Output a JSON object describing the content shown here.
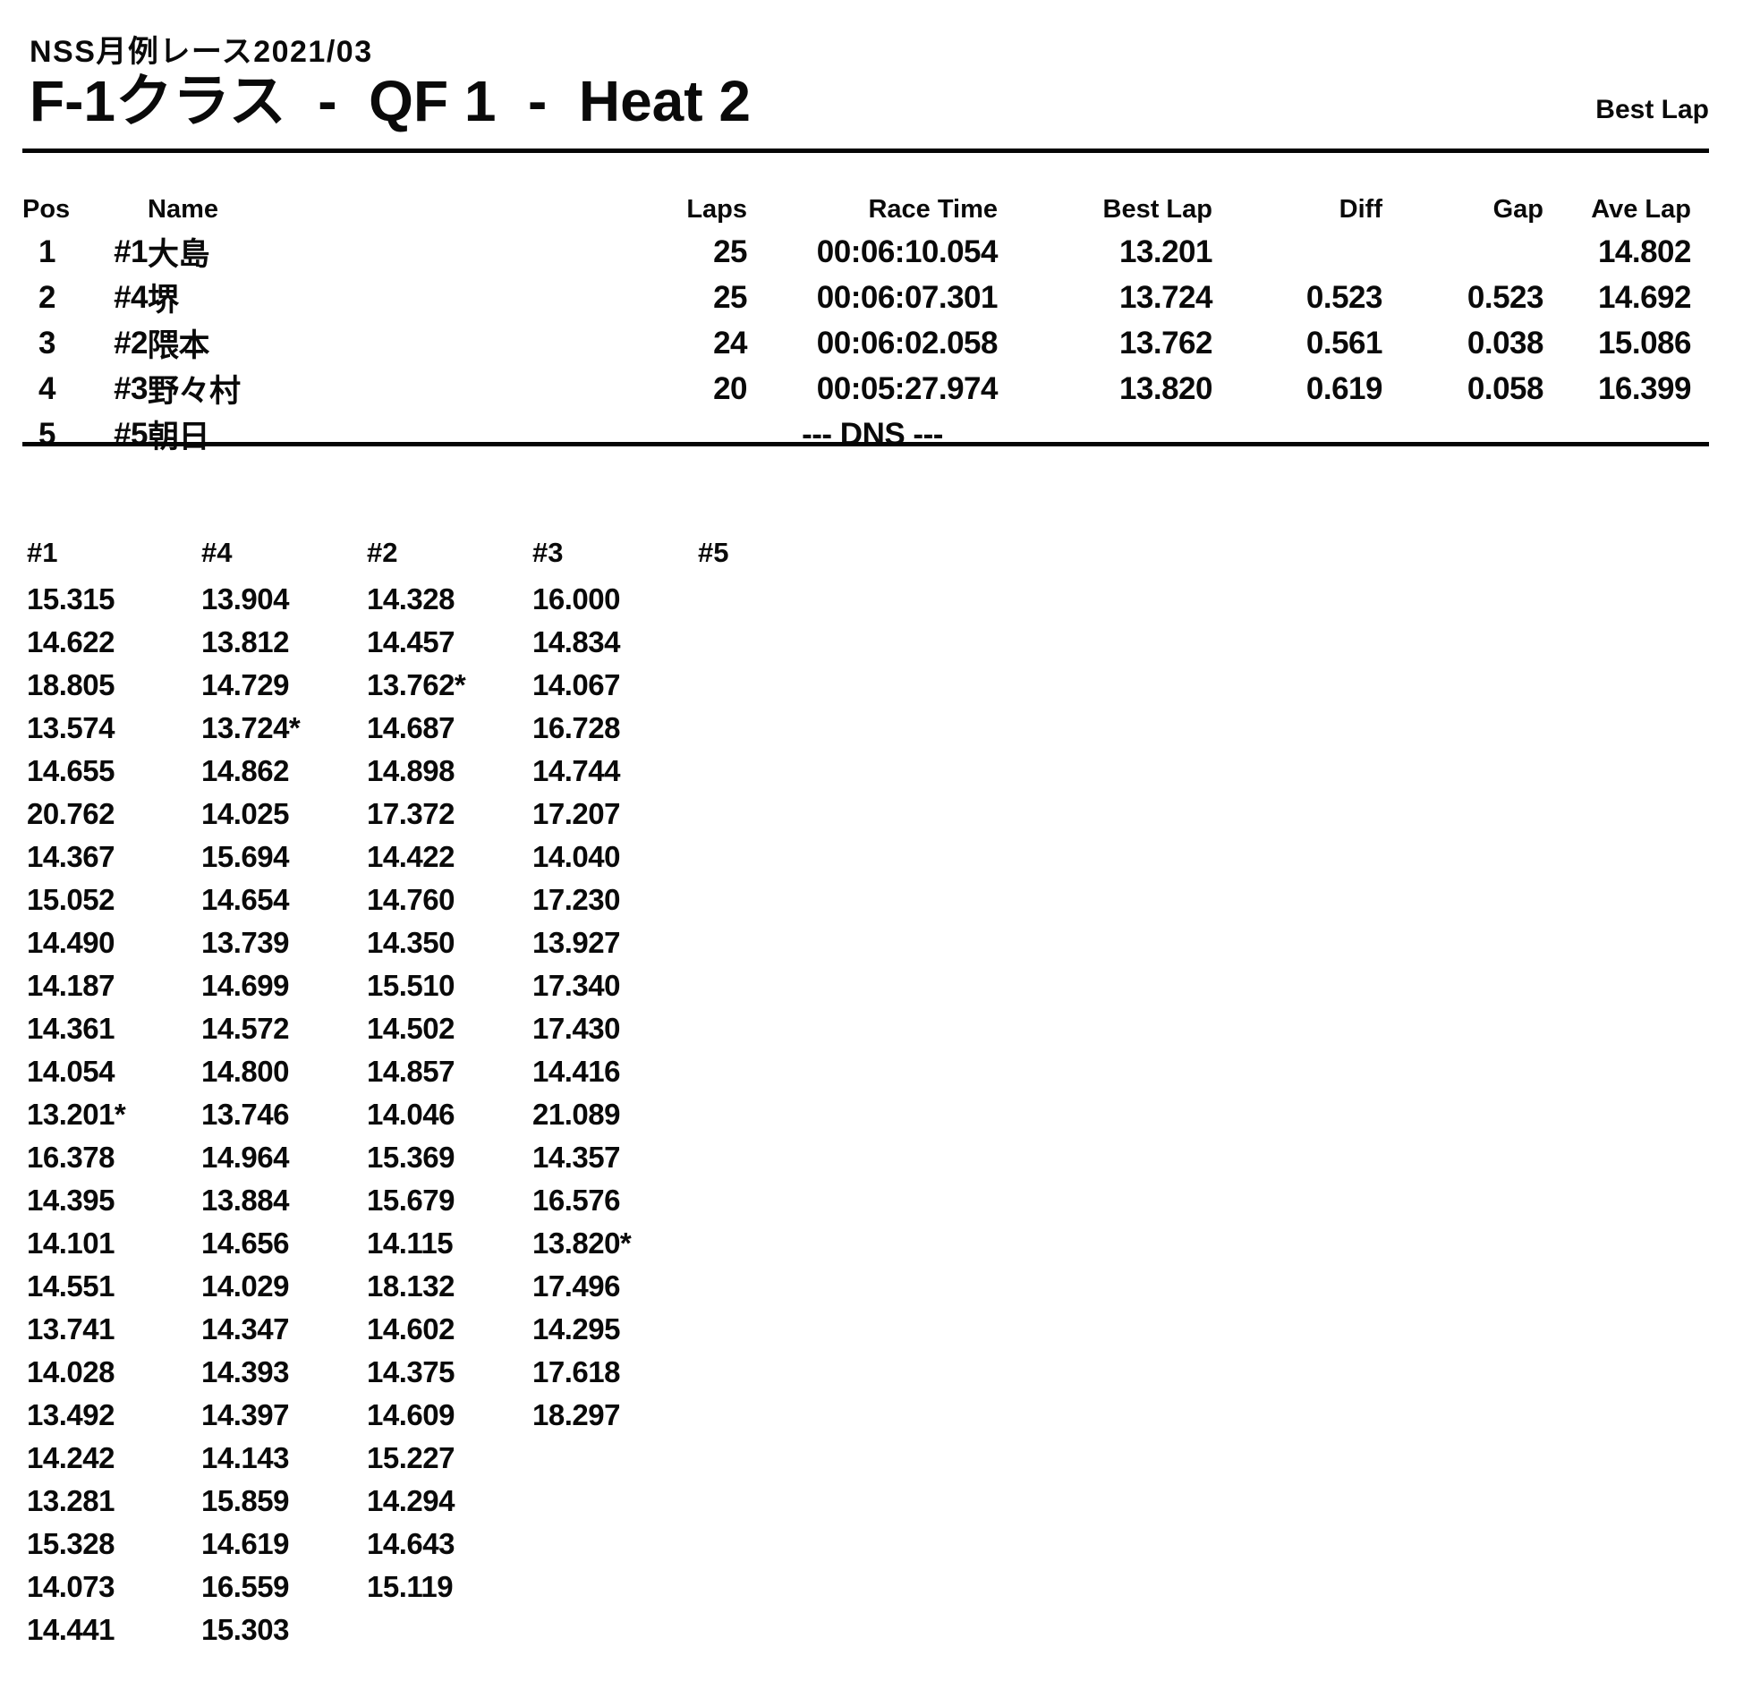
{
  "header": {
    "event": "NSS月例レース2021/03",
    "title": "F-1クラス  -  QF 1  -  Heat 2",
    "corner_label": "Best Lap"
  },
  "results": {
    "headers": {
      "pos": "Pos",
      "car": "",
      "name": "Name",
      "laps": "Laps",
      "race_time": "Race Time",
      "best_lap": "Best Lap",
      "diff": "Diff",
      "gap": "Gap",
      "ave_lap": "Ave Lap"
    },
    "rows": [
      {
        "pos": "1",
        "car": "#1",
        "name": "大島",
        "laps": "25",
        "race_time": "00:06:10.054",
        "best_lap": "13.201",
        "diff": "",
        "gap": "",
        "ave_lap": "14.802",
        "dns": false
      },
      {
        "pos": "2",
        "car": "#4",
        "name": "堺",
        "laps": "25",
        "race_time": "00:06:07.301",
        "best_lap": "13.724",
        "diff": "0.523",
        "gap": "0.523",
        "ave_lap": "14.692",
        "dns": false
      },
      {
        "pos": "3",
        "car": "#2",
        "name": "隈本",
        "laps": "24",
        "race_time": "00:06:02.058",
        "best_lap": "13.762",
        "diff": "0.561",
        "gap": "0.038",
        "ave_lap": "15.086",
        "dns": false
      },
      {
        "pos": "4",
        "car": "#3",
        "name": "野々村",
        "laps": "20",
        "race_time": "00:05:27.974",
        "best_lap": "13.820",
        "diff": "0.619",
        "gap": "0.058",
        "ave_lap": "16.399",
        "dns": false
      },
      {
        "pos": "5",
        "car": "#5",
        "name": "朝日",
        "laps": "",
        "race_time": "--- DNS ---",
        "best_lap": "",
        "diff": "",
        "gap": "",
        "ave_lap": "",
        "dns": true
      }
    ]
  },
  "lap_chart": {
    "type": "table",
    "title": "Lap times by car",
    "columns": [
      {
        "car": "#1",
        "laps": [
          "15.315",
          "14.622",
          "18.805",
          "13.574",
          "14.655",
          "20.762",
          "14.367",
          "15.052",
          "14.490",
          "14.187",
          "14.361",
          "14.054",
          "13.201*",
          "16.378",
          "14.395",
          "14.101",
          "14.551",
          "13.741",
          "14.028",
          "13.492",
          "14.242",
          "13.281",
          "15.328",
          "14.073",
          "14.441"
        ]
      },
      {
        "car": "#4",
        "laps": [
          "13.904",
          "13.812",
          "14.729",
          "13.724*",
          "14.862",
          "14.025",
          "15.694",
          "14.654",
          "13.739",
          "14.699",
          "14.572",
          "14.800",
          "13.746",
          "14.964",
          "13.884",
          "14.656",
          "14.029",
          "14.347",
          "14.393",
          "14.397",
          "14.143",
          "15.859",
          "14.619",
          "16.559",
          "15.303"
        ]
      },
      {
        "car": "#2",
        "laps": [
          "14.328",
          "14.457",
          "13.762*",
          "14.687",
          "14.898",
          "17.372",
          "14.422",
          "14.760",
          "14.350",
          "15.510",
          "14.502",
          "14.857",
          "14.046",
          "15.369",
          "15.679",
          "14.115",
          "18.132",
          "14.602",
          "14.375",
          "14.609",
          "15.227",
          "14.294",
          "14.643",
          "15.119"
        ]
      },
      {
        "car": "#3",
        "laps": [
          "16.000",
          "14.834",
          "14.067",
          "16.728",
          "14.744",
          "17.207",
          "14.040",
          "17.230",
          "13.927",
          "17.340",
          "17.430",
          "14.416",
          "21.089",
          "14.357",
          "16.576",
          "13.820*",
          "17.496",
          "14.295",
          "17.618",
          "18.297"
        ]
      },
      {
        "car": "#5",
        "laps": []
      }
    ]
  }
}
